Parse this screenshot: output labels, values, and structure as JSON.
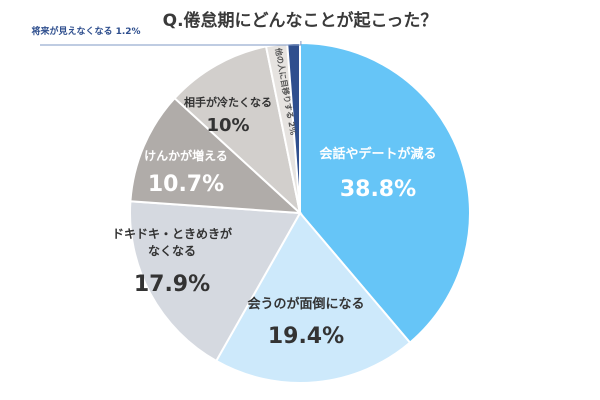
{
  "chart_data": {
    "type": "pie",
    "title": "Q.倦怠期にどんなことが起こった？",
    "slices": [
      {
        "label": "会話やデートが減る",
        "value": 38.8,
        "value_label": "38.8%",
        "color": "#66c5f7"
      },
      {
        "label": "会うのが面倒になる",
        "value": 19.4,
        "value_label": "19.4%",
        "color": "#cde9fb"
      },
      {
        "label": "ドキドキ・ときめきが なくなる",
        "value": 17.9,
        "value_label": "17.9%",
        "color": "#d5d9e0"
      },
      {
        "label": "けんかが増える",
        "value": 10.7,
        "value_label": "10.7%",
        "color": "#b0aca9"
      },
      {
        "label": "相手が冷たくなる",
        "value": 10,
        "value_label": "10%",
        "color": "#d2cfcc"
      },
      {
        "label": "他の人に目移りする 2%",
        "value": 2,
        "value_label": "",
        "color": "#e6e3e0"
      },
      {
        "label": "将来が見えなくなる 1.2%",
        "value": 1.2,
        "value_label": "",
        "color": "#2f4f8e"
      }
    ],
    "start_angle_deg": 0,
    "direction": "clockwise"
  }
}
